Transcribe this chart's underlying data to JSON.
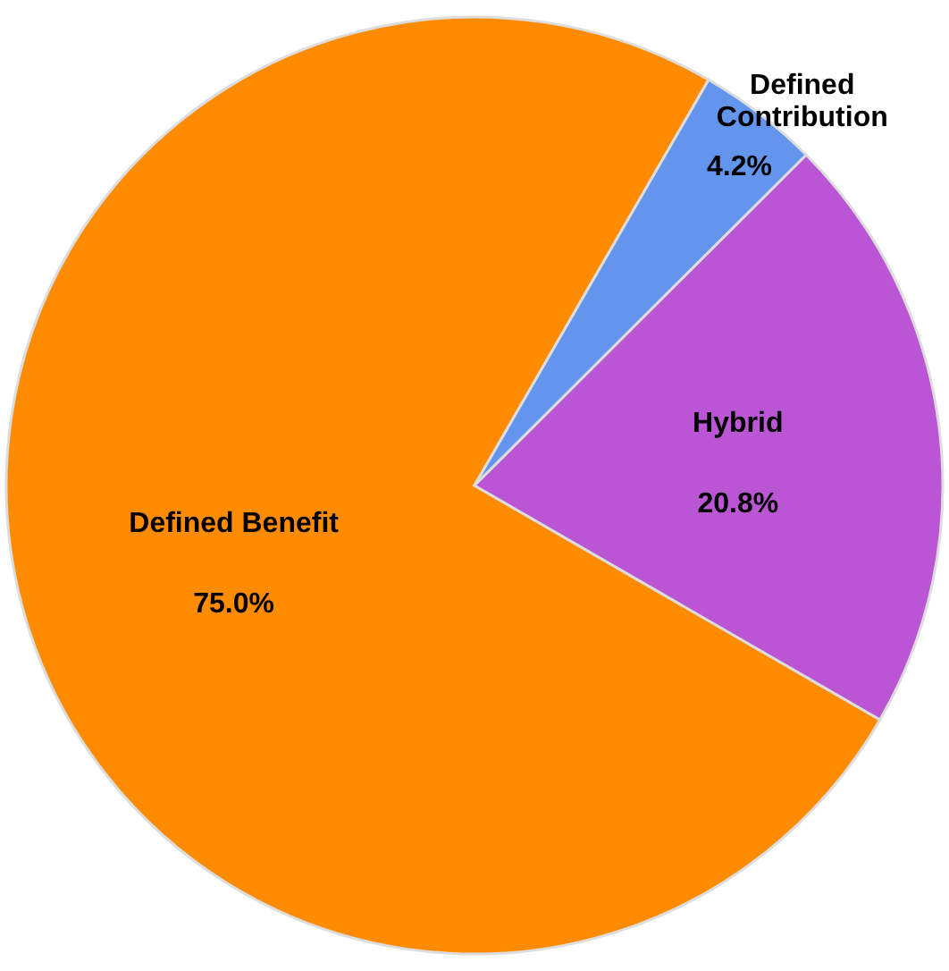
{
  "chart_data": {
    "type": "pie",
    "categories": [
      "Defined Benefit",
      "Defined Contribution",
      "Hybrid"
    ],
    "values": [
      75.0,
      4.2,
      20.8
    ],
    "colors": [
      "#ff8c00",
      "#6495ed",
      "#ba55d3"
    ],
    "value_labels": [
      "75.0%",
      "4.2%",
      "20.8%"
    ]
  }
}
